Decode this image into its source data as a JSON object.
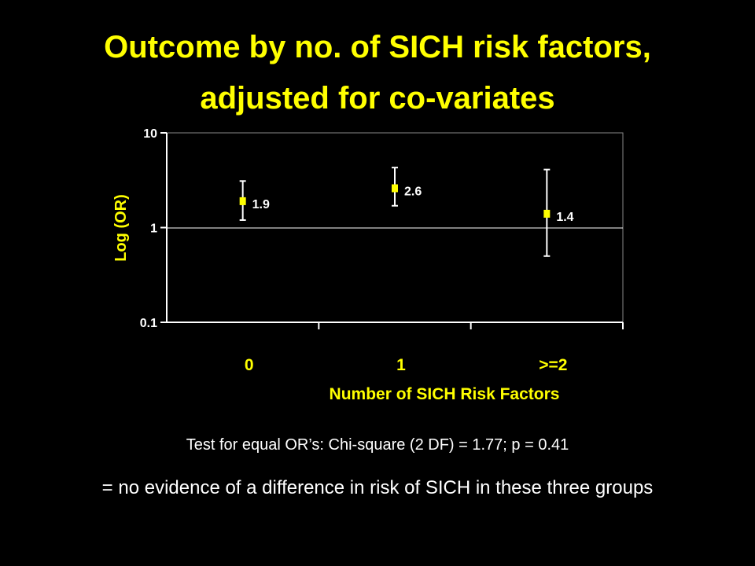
{
  "title_line_1": "Outcome by no. of SICH risk factors,",
  "title_line_2": "adjusted for co-variates",
  "chart_data": {
    "type": "scatter",
    "subtype": "point-with-error-bars",
    "categories": [
      "0",
      "1",
      ">=2"
    ],
    "values": [
      1.9,
      2.6,
      1.4
    ],
    "ci_lower": [
      1.2,
      1.7,
      0.5
    ],
    "ci_upper": [
      3.1,
      4.3,
      4.1
    ],
    "data_labels": [
      "1.9",
      "2.6",
      "1.4"
    ],
    "xlabel": "Number of SICH Risk Factors",
    "ylabel": "Log (OR)",
    "yscale": "log",
    "ylim": [
      0.1,
      10
    ],
    "yticks": [
      0.1,
      1,
      10
    ],
    "ytick_labels": [
      "0.1",
      "1",
      "10"
    ],
    "grid": "horizontal line at 1",
    "legend": "none",
    "colors": {
      "background": "#000000",
      "title": "#ffff00",
      "axis_label": "#ffff00",
      "tick_label": "#ffffff",
      "marker": "#ffff00",
      "error_bar": "#ffffff",
      "axis": "#ffffff"
    }
  },
  "test_note": "Test for equal OR’s: Chi-square (2 DF) = 1.77; p = 0.41",
  "conclusion": "= no evidence of a difference in risk of SICH in these three groups"
}
